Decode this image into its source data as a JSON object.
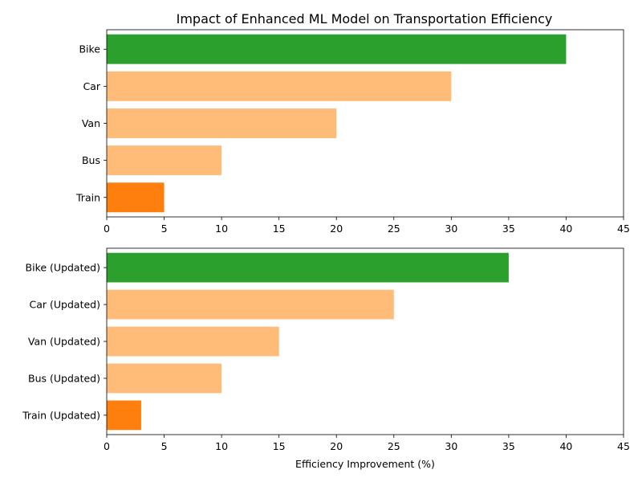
{
  "figure_title": "Impact of Enhanced ML Model on Transportation Efficiency",
  "colors": {
    "max": "#2ca02c",
    "min": "#ff7f0e",
    "other": "#ffbb78"
  },
  "chart_data": [
    {
      "type": "bar",
      "orientation": "horizontal",
      "title": "Impact of Enhanced ML Model on Transportation Efficiency",
      "categories": [
        "Bike",
        "Car",
        "Van",
        "Bus",
        "Train"
      ],
      "values": [
        40,
        30,
        20,
        10,
        5
      ],
      "xlabel": "",
      "ylabel": "",
      "xlim": [
        0,
        45
      ],
      "xticks": [
        0,
        5,
        10,
        15,
        20,
        25,
        30,
        35,
        40,
        45
      ],
      "grid": false,
      "legend": "none"
    },
    {
      "type": "bar",
      "orientation": "horizontal",
      "title": "",
      "categories": [
        "Bike (Updated)",
        "Car (Updated)",
        "Van (Updated)",
        "Bus (Updated)",
        "Train (Updated)"
      ],
      "values": [
        35,
        25,
        15,
        10,
        3
      ],
      "xlabel": "Efficiency Improvement (%)",
      "ylabel": "",
      "xlim": [
        0,
        45
      ],
      "xticks": [
        0,
        5,
        10,
        15,
        20,
        25,
        30,
        35,
        40,
        45
      ],
      "grid": false,
      "legend": "none"
    }
  ]
}
